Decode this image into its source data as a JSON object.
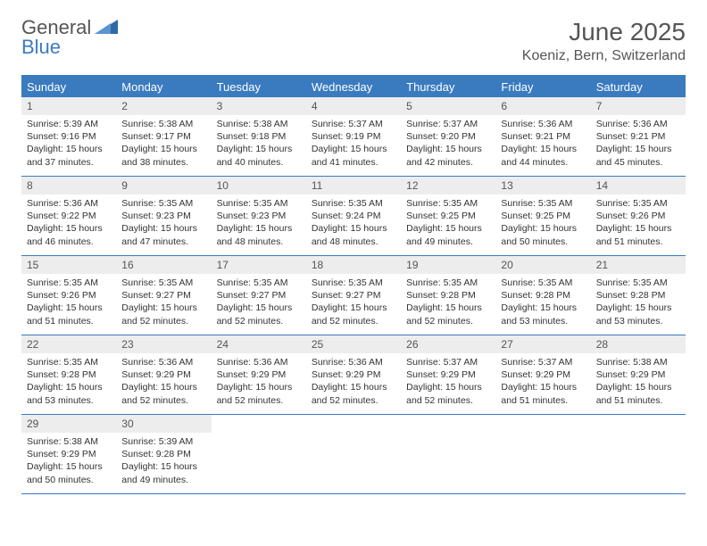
{
  "logo": {
    "line1": "General",
    "line2": "Blue"
  },
  "colors": {
    "accent": "#3a7bbf",
    "header_text": "#555555",
    "daynum_bg": "#ededed",
    "body_text": "#333333"
  },
  "title": "June 2025",
  "subtitle": "Koeniz, Bern, Switzerland",
  "weekdays": [
    "Sunday",
    "Monday",
    "Tuesday",
    "Wednesday",
    "Thursday",
    "Friday",
    "Saturday"
  ],
  "weeks": [
    [
      {
        "n": "1",
        "sr": "Sunrise: 5:39 AM",
        "ss": "Sunset: 9:16 PM",
        "dl1": "Daylight: 15 hours",
        "dl2": "and 37 minutes."
      },
      {
        "n": "2",
        "sr": "Sunrise: 5:38 AM",
        "ss": "Sunset: 9:17 PM",
        "dl1": "Daylight: 15 hours",
        "dl2": "and 38 minutes."
      },
      {
        "n": "3",
        "sr": "Sunrise: 5:38 AM",
        "ss": "Sunset: 9:18 PM",
        "dl1": "Daylight: 15 hours",
        "dl2": "and 40 minutes."
      },
      {
        "n": "4",
        "sr": "Sunrise: 5:37 AM",
        "ss": "Sunset: 9:19 PM",
        "dl1": "Daylight: 15 hours",
        "dl2": "and 41 minutes."
      },
      {
        "n": "5",
        "sr": "Sunrise: 5:37 AM",
        "ss": "Sunset: 9:20 PM",
        "dl1": "Daylight: 15 hours",
        "dl2": "and 42 minutes."
      },
      {
        "n": "6",
        "sr": "Sunrise: 5:36 AM",
        "ss": "Sunset: 9:21 PM",
        "dl1": "Daylight: 15 hours",
        "dl2": "and 44 minutes."
      },
      {
        "n": "7",
        "sr": "Sunrise: 5:36 AM",
        "ss": "Sunset: 9:21 PM",
        "dl1": "Daylight: 15 hours",
        "dl2": "and 45 minutes."
      }
    ],
    [
      {
        "n": "8",
        "sr": "Sunrise: 5:36 AM",
        "ss": "Sunset: 9:22 PM",
        "dl1": "Daylight: 15 hours",
        "dl2": "and 46 minutes."
      },
      {
        "n": "9",
        "sr": "Sunrise: 5:35 AM",
        "ss": "Sunset: 9:23 PM",
        "dl1": "Daylight: 15 hours",
        "dl2": "and 47 minutes."
      },
      {
        "n": "10",
        "sr": "Sunrise: 5:35 AM",
        "ss": "Sunset: 9:23 PM",
        "dl1": "Daylight: 15 hours",
        "dl2": "and 48 minutes."
      },
      {
        "n": "11",
        "sr": "Sunrise: 5:35 AM",
        "ss": "Sunset: 9:24 PM",
        "dl1": "Daylight: 15 hours",
        "dl2": "and 48 minutes."
      },
      {
        "n": "12",
        "sr": "Sunrise: 5:35 AM",
        "ss": "Sunset: 9:25 PM",
        "dl1": "Daylight: 15 hours",
        "dl2": "and 49 minutes."
      },
      {
        "n": "13",
        "sr": "Sunrise: 5:35 AM",
        "ss": "Sunset: 9:25 PM",
        "dl1": "Daylight: 15 hours",
        "dl2": "and 50 minutes."
      },
      {
        "n": "14",
        "sr": "Sunrise: 5:35 AM",
        "ss": "Sunset: 9:26 PM",
        "dl1": "Daylight: 15 hours",
        "dl2": "and 51 minutes."
      }
    ],
    [
      {
        "n": "15",
        "sr": "Sunrise: 5:35 AM",
        "ss": "Sunset: 9:26 PM",
        "dl1": "Daylight: 15 hours",
        "dl2": "and 51 minutes."
      },
      {
        "n": "16",
        "sr": "Sunrise: 5:35 AM",
        "ss": "Sunset: 9:27 PM",
        "dl1": "Daylight: 15 hours",
        "dl2": "and 52 minutes."
      },
      {
        "n": "17",
        "sr": "Sunrise: 5:35 AM",
        "ss": "Sunset: 9:27 PM",
        "dl1": "Daylight: 15 hours",
        "dl2": "and 52 minutes."
      },
      {
        "n": "18",
        "sr": "Sunrise: 5:35 AM",
        "ss": "Sunset: 9:27 PM",
        "dl1": "Daylight: 15 hours",
        "dl2": "and 52 minutes."
      },
      {
        "n": "19",
        "sr": "Sunrise: 5:35 AM",
        "ss": "Sunset: 9:28 PM",
        "dl1": "Daylight: 15 hours",
        "dl2": "and 52 minutes."
      },
      {
        "n": "20",
        "sr": "Sunrise: 5:35 AM",
        "ss": "Sunset: 9:28 PM",
        "dl1": "Daylight: 15 hours",
        "dl2": "and 53 minutes."
      },
      {
        "n": "21",
        "sr": "Sunrise: 5:35 AM",
        "ss": "Sunset: 9:28 PM",
        "dl1": "Daylight: 15 hours",
        "dl2": "and 53 minutes."
      }
    ],
    [
      {
        "n": "22",
        "sr": "Sunrise: 5:35 AM",
        "ss": "Sunset: 9:28 PM",
        "dl1": "Daylight: 15 hours",
        "dl2": "and 53 minutes."
      },
      {
        "n": "23",
        "sr": "Sunrise: 5:36 AM",
        "ss": "Sunset: 9:29 PM",
        "dl1": "Daylight: 15 hours",
        "dl2": "and 52 minutes."
      },
      {
        "n": "24",
        "sr": "Sunrise: 5:36 AM",
        "ss": "Sunset: 9:29 PM",
        "dl1": "Daylight: 15 hours",
        "dl2": "and 52 minutes."
      },
      {
        "n": "25",
        "sr": "Sunrise: 5:36 AM",
        "ss": "Sunset: 9:29 PM",
        "dl1": "Daylight: 15 hours",
        "dl2": "and 52 minutes."
      },
      {
        "n": "26",
        "sr": "Sunrise: 5:37 AM",
        "ss": "Sunset: 9:29 PM",
        "dl1": "Daylight: 15 hours",
        "dl2": "and 52 minutes."
      },
      {
        "n": "27",
        "sr": "Sunrise: 5:37 AM",
        "ss": "Sunset: 9:29 PM",
        "dl1": "Daylight: 15 hours",
        "dl2": "and 51 minutes."
      },
      {
        "n": "28",
        "sr": "Sunrise: 5:38 AM",
        "ss": "Sunset: 9:29 PM",
        "dl1": "Daylight: 15 hours",
        "dl2": "and 51 minutes."
      }
    ],
    [
      {
        "n": "29",
        "sr": "Sunrise: 5:38 AM",
        "ss": "Sunset: 9:29 PM",
        "dl1": "Daylight: 15 hours",
        "dl2": "and 50 minutes."
      },
      {
        "n": "30",
        "sr": "Sunrise: 5:39 AM",
        "ss": "Sunset: 9:28 PM",
        "dl1": "Daylight: 15 hours",
        "dl2": "and 49 minutes."
      },
      null,
      null,
      null,
      null,
      null
    ]
  ]
}
